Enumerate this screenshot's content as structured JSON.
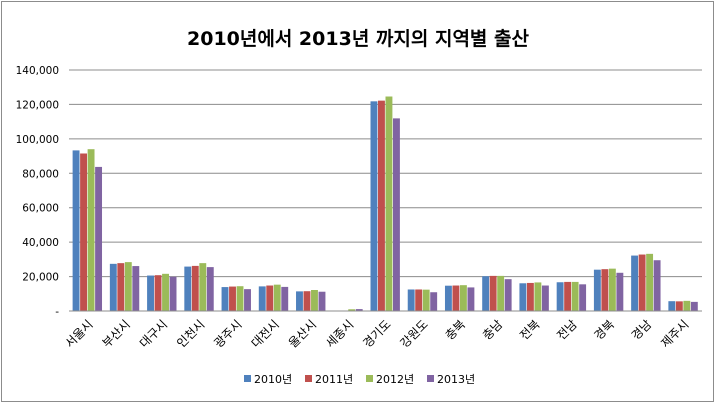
{
  "chart_data": {
    "type": "bar",
    "title": "2010년에서 2013년 까지의 지역별 출산",
    "xlabel": "",
    "ylabel": "",
    "ylim": [
      0,
      140000
    ],
    "yticks": [
      0,
      20000,
      40000,
      60000,
      80000,
      100000,
      120000,
      140000
    ],
    "ytick_labels": [
      "-",
      "20,000",
      "40,000",
      "60,000",
      "80,000",
      "100,000",
      "120,000",
      "140,000"
    ],
    "grid": true,
    "legend_position": "bottom",
    "categories": [
      "서울시",
      "부산시",
      "대구시",
      "인천시",
      "광주시",
      "대전시",
      "울산시",
      "세종시",
      "경기도",
      "강원도",
      "충북",
      "충남",
      "전북",
      "전남",
      "경북",
      "경남",
      "제주시"
    ],
    "series": [
      {
        "name": "2010년",
        "color": "#4f81bd",
        "values": [
          93300,
          27400,
          20600,
          25800,
          13900,
          14300,
          11400,
          0,
          121800,
          12500,
          14700,
          20200,
          16100,
          16700,
          24000,
          32200,
          5700
        ]
      },
      {
        "name": "2011년",
        "color": "#c0504d",
        "values": [
          91500,
          27800,
          20800,
          26200,
          14200,
          14800,
          11500,
          0,
          122200,
          12500,
          14800,
          20400,
          16300,
          16900,
          24300,
          32800,
          5600
        ]
      },
      {
        "name": "2012년",
        "color": "#9bbb59",
        "values": [
          94000,
          28400,
          21600,
          27800,
          14400,
          15300,
          12200,
          1000,
          124600,
          12400,
          15000,
          20400,
          16600,
          16900,
          24600,
          33200,
          5900
        ]
      },
      {
        "name": "2013년",
        "color": "#8064a2",
        "values": [
          83700,
          26100,
          19900,
          25500,
          12700,
          14000,
          11200,
          1100,
          111900,
          10900,
          13700,
          18500,
          14800,
          15500,
          22200,
          29500,
          5300
        ]
      }
    ]
  }
}
